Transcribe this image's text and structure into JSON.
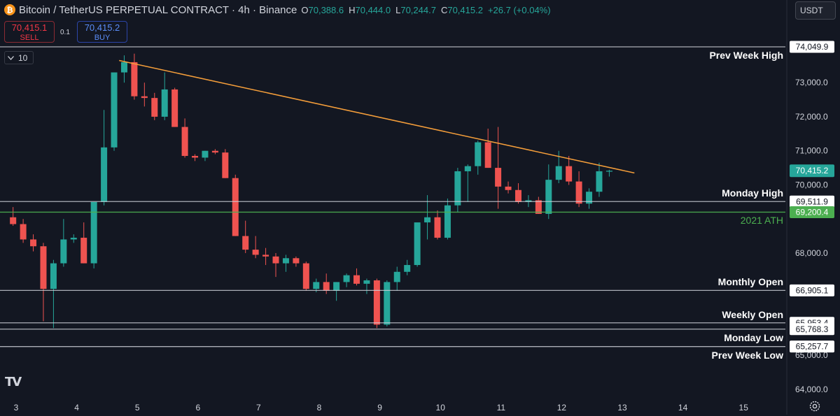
{
  "header": {
    "symbol": "Bitcoin / TetherUS PERPETUAL CONTRACT · 4h · Binance",
    "coin_icon": "bitcoin-icon",
    "ohlc": {
      "o_key": "O",
      "o": "70,388.6",
      "h_key": "H",
      "h": "70,444.0",
      "l_key": "L",
      "l": "70,244.7",
      "c_key": "C",
      "c": "70,415.2",
      "change": "+26.7 (+0.04%)"
    },
    "currency": "USDT"
  },
  "trade": {
    "sell_price": "70,415.1",
    "sell_label": "SELL",
    "spread": "0.1",
    "buy_price": "70,415.2",
    "buy_label": "BUY"
  },
  "indicator_toggle": "10",
  "logo_text": "TV",
  "colors": {
    "background": "#131722",
    "up": "#26a69a",
    "down": "#ef5350",
    "trendline": "#f59e3a",
    "level": "#d1d4dc",
    "ath": "#4caf50"
  },
  "chart_data": {
    "type": "candlestick",
    "timeframe": "4h",
    "ylim": [
      63600,
      74800
    ],
    "y_ticks": [
      "74,049.9",
      "73,000.0",
      "72,000.0",
      "71,000.0",
      "70,000.0",
      "68,000.0",
      "65,000.0",
      "64,000.0"
    ],
    "y_tick_values": [
      74049.9,
      73000,
      72000,
      71000,
      70000,
      68000,
      65000,
      64000
    ],
    "x_ticks": [
      "3",
      "4",
      "5",
      "6",
      "7",
      "8",
      "9",
      "10",
      "11",
      "12",
      "13",
      "14",
      "15"
    ],
    "x_tick_days": [
      3,
      4,
      5,
      6,
      7,
      8,
      9,
      10,
      11,
      12,
      13,
      14,
      15
    ],
    "candle_period_days": 0.1667,
    "candles": [
      {
        "o": 69050,
        "h": 69350,
        "l": 68800,
        "c": 68850
      },
      {
        "o": 68850,
        "h": 69000,
        "l": 68300,
        "c": 68400
      },
      {
        "o": 68400,
        "h": 68550,
        "l": 68050,
        "c": 68200
      },
      {
        "o": 68200,
        "h": 68300,
        "l": 66000,
        "c": 66950
      },
      {
        "o": 66950,
        "h": 67800,
        "l": 65800,
        "c": 67700
      },
      {
        "o": 67700,
        "h": 69000,
        "l": 67600,
        "c": 68400
      },
      {
        "o": 68400,
        "h": 68550,
        "l": 68300,
        "c": 68450
      },
      {
        "o": 68450,
        "h": 68900,
        "l": 67700,
        "c": 67700
      },
      {
        "o": 67700,
        "h": 69500,
        "l": 67550,
        "c": 69500
      },
      {
        "o": 69500,
        "h": 72200,
        "l": 69400,
        "c": 71100
      },
      {
        "o": 71100,
        "h": 73300,
        "l": 71000,
        "c": 73300
      },
      {
        "o": 73300,
        "h": 73800,
        "l": 73000,
        "c": 73600
      },
      {
        "o": 73600,
        "h": 73850,
        "l": 72500,
        "c": 72600
      },
      {
        "o": 72600,
        "h": 73000,
        "l": 72300,
        "c": 72550
      },
      {
        "o": 72550,
        "h": 72700,
        "l": 71900,
        "c": 72000
      },
      {
        "o": 72000,
        "h": 73300,
        "l": 71900,
        "c": 72800
      },
      {
        "o": 72800,
        "h": 72850,
        "l": 71700,
        "c": 71700
      },
      {
        "o": 71700,
        "h": 71950,
        "l": 70800,
        "c": 70850
      },
      {
        "o": 70850,
        "h": 70900,
        "l": 70700,
        "c": 70800
      },
      {
        "o": 70800,
        "h": 71000,
        "l": 70700,
        "c": 71000
      },
      {
        "o": 71000,
        "h": 71050,
        "l": 70900,
        "c": 70950
      },
      {
        "o": 70950,
        "h": 71050,
        "l": 70200,
        "c": 70200
      },
      {
        "o": 70200,
        "h": 70300,
        "l": 68500,
        "c": 68500
      },
      {
        "o": 68500,
        "h": 68950,
        "l": 68000,
        "c": 68100
      },
      {
        "o": 68100,
        "h": 68500,
        "l": 67850,
        "c": 67950
      },
      {
        "o": 67950,
        "h": 68150,
        "l": 67650,
        "c": 67900
      },
      {
        "o": 67900,
        "h": 68000,
        "l": 67300,
        "c": 67700
      },
      {
        "o": 67700,
        "h": 67950,
        "l": 67450,
        "c": 67850
      },
      {
        "o": 67850,
        "h": 67900,
        "l": 67600,
        "c": 67700
      },
      {
        "o": 67700,
        "h": 67750,
        "l": 66900,
        "c": 66950
      },
      {
        "o": 66950,
        "h": 67250,
        "l": 66850,
        "c": 67150
      },
      {
        "o": 67150,
        "h": 67400,
        "l": 66800,
        "c": 66900
      },
      {
        "o": 66900,
        "h": 67150,
        "l": 66600,
        "c": 67150
      },
      {
        "o": 67150,
        "h": 67400,
        "l": 67000,
        "c": 67350
      },
      {
        "o": 67350,
        "h": 67550,
        "l": 67050,
        "c": 67100
      },
      {
        "o": 67100,
        "h": 67250,
        "l": 66800,
        "c": 67200
      },
      {
        "o": 67200,
        "h": 67250,
        "l": 65800,
        "c": 65900
      },
      {
        "o": 65900,
        "h": 67200,
        "l": 65850,
        "c": 67150
      },
      {
        "o": 67150,
        "h": 67600,
        "l": 66900,
        "c": 67450
      },
      {
        "o": 67450,
        "h": 67800,
        "l": 67350,
        "c": 67650
      },
      {
        "o": 67650,
        "h": 68800,
        "l": 67600,
        "c": 68900
      },
      {
        "o": 68900,
        "h": 69700,
        "l": 68400,
        "c": 69050
      },
      {
        "o": 69050,
        "h": 69250,
        "l": 68400,
        "c": 68450
      },
      {
        "o": 68450,
        "h": 69600,
        "l": 68400,
        "c": 69400
      },
      {
        "o": 69400,
        "h": 70500,
        "l": 69200,
        "c": 70400
      },
      {
        "o": 70400,
        "h": 70600,
        "l": 69500,
        "c": 70550
      },
      {
        "o": 70550,
        "h": 71300,
        "l": 70300,
        "c": 71250
      },
      {
        "o": 71250,
        "h": 71650,
        "l": 70500,
        "c": 70500
      },
      {
        "o": 70500,
        "h": 71700,
        "l": 69300,
        "c": 69950
      },
      {
        "o": 69950,
        "h": 70100,
        "l": 69750,
        "c": 69850
      },
      {
        "o": 69850,
        "h": 70050,
        "l": 69450,
        "c": 69500
      },
      {
        "o": 69500,
        "h": 69700,
        "l": 69350,
        "c": 69550
      },
      {
        "o": 69550,
        "h": 69650,
        "l": 69150,
        "c": 69150
      },
      {
        "o": 69150,
        "h": 70600,
        "l": 69000,
        "c": 70150
      },
      {
        "o": 70150,
        "h": 71000,
        "l": 70050,
        "c": 70550
      },
      {
        "o": 70550,
        "h": 70850,
        "l": 70000,
        "c": 70100
      },
      {
        "o": 70100,
        "h": 70400,
        "l": 69350,
        "c": 69450
      },
      {
        "o": 69450,
        "h": 69900,
        "l": 69300,
        "c": 69800
      },
      {
        "o": 69800,
        "h": 70650,
        "l": 69650,
        "c": 70400
      },
      {
        "o": 70388.6,
        "h": 70444.0,
        "l": 70244.7,
        "c": 70415.2
      }
    ],
    "trendline": {
      "start": {
        "day": 4.7,
        "price": 73650
      },
      "end": {
        "day": 13.2,
        "price": 70350
      }
    },
    "levels": [
      {
        "label": "Prev Week High",
        "price_text": "74,049.9",
        "price": 74049.9
      },
      {
        "label": "Monday High",
        "price_text": "69,511.9",
        "price": 69511.9
      },
      {
        "label": "2021 ATH",
        "price_text": "69,200.4",
        "price": 69200.4
      },
      {
        "label": "Monthly Open",
        "price_text": "66,905.1",
        "price": 66905.1
      },
      {
        "label": "Weekly Open",
        "price_text": "65,953.4",
        "price": 65953.4
      },
      {
        "label": "Monday Low",
        "price_text": "65,768.3",
        "price": 65768.3
      },
      {
        "label": "Prev Week Low",
        "price_text": "65,257.7",
        "price": 65257.7
      }
    ],
    "last_price": {
      "text": "70,415.2",
      "price": 70415.2
    }
  }
}
